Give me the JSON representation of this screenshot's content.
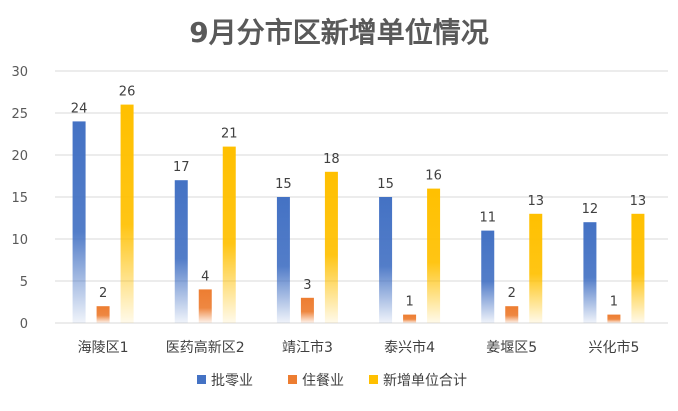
{
  "chart_data": {
    "type": "bar",
    "title": "9月分市区新增单位情况",
    "categories": [
      "海陵区1",
      "医药高新区2",
      "靖江市3",
      "泰兴市4",
      "姜堰区5",
      "兴化市5"
    ],
    "series": [
      {
        "name": "批零业",
        "values": [
          24,
          17,
          15,
          15,
          11,
          12
        ],
        "color": "#4472C4"
      },
      {
        "name": "住餐业",
        "values": [
          2,
          4,
          3,
          1,
          2,
          1
        ],
        "color": "#ED7D31"
      },
      {
        "name": "新增单位合计",
        "values": [
          26,
          21,
          18,
          16,
          13,
          13
        ],
        "color": "#FFC000"
      }
    ],
    "ylim": [
      0,
      30
    ],
    "yticks": [
      0,
      5,
      10,
      15,
      20,
      25,
      30
    ],
    "grid": true,
    "legend_position": "bottom"
  }
}
